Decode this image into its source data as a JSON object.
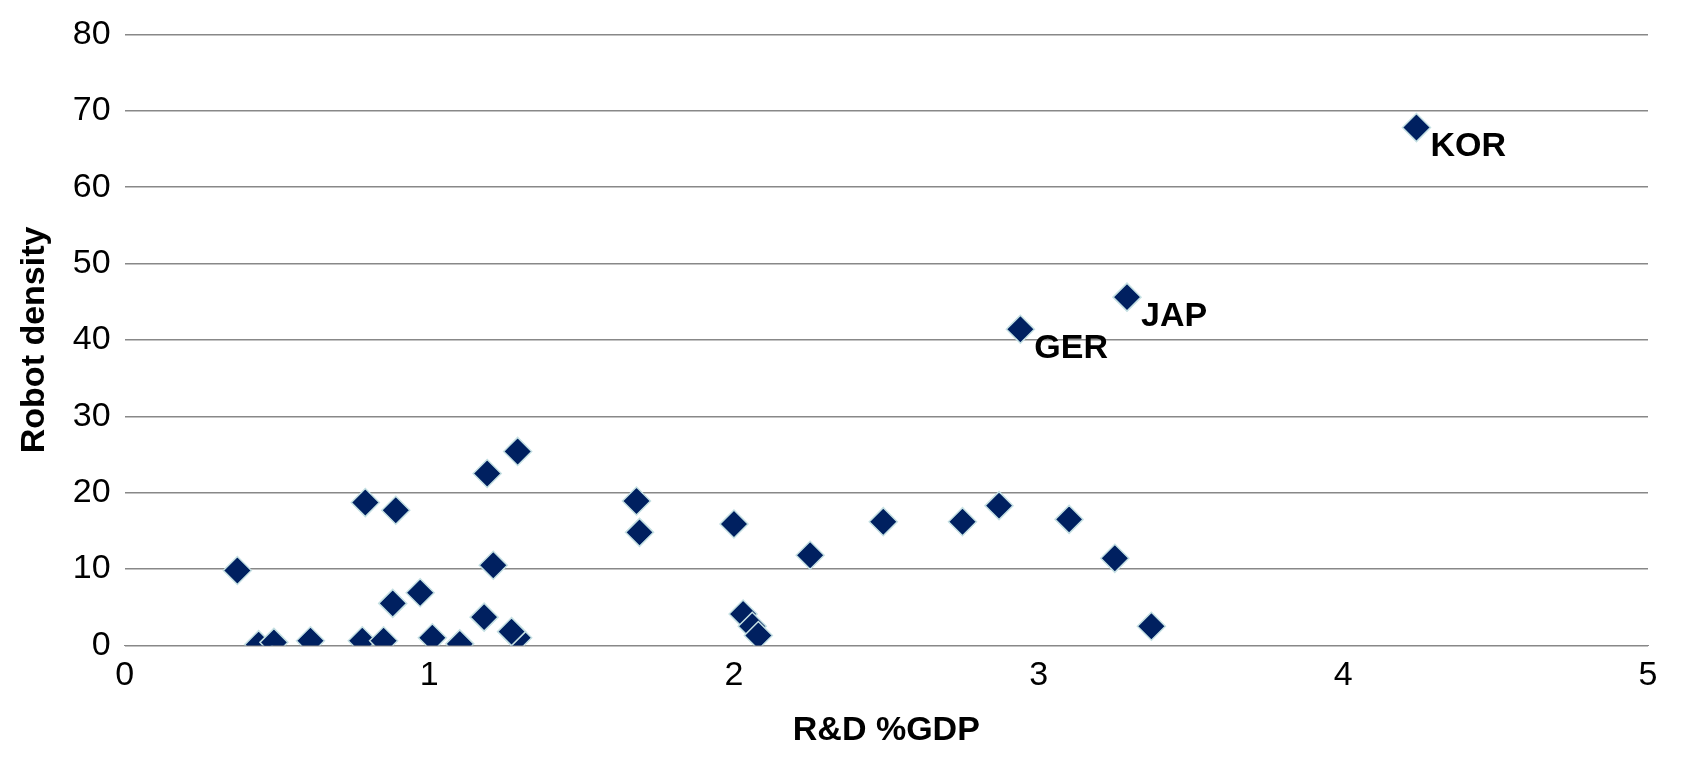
{
  "chart_data": {
    "type": "scatter",
    "xlabel": "R&D %GDP",
    "ylabel": "Robot density",
    "x": [
      0.37,
      0.44,
      0.49,
      0.61,
      0.78,
      0.79,
      0.85,
      0.88,
      0.89,
      0.97,
      1.01,
      1.1,
      1.18,
      1.19,
      1.21,
      1.29,
      1.27,
      1.29,
      1.68,
      1.69,
      2.0,
      2.03,
      2.06,
      2.08,
      2.25,
      2.49,
      2.75,
      2.87,
      2.94,
      3.1,
      3.25,
      3.29,
      3.37,
      4.24
    ],
    "series": [
      {
        "color": "#002060",
        "values": [
          9.8,
          0.1,
          0.4,
          0.6,
          0.6,
          18.7,
          0.6,
          5.5,
          17.7,
          6.9,
          1.0,
          0.2,
          3.7,
          22.5,
          10.5,
          1.0,
          1.8,
          25.4,
          18.9,
          14.8,
          15.9,
          4.1,
          2.5,
          1.3,
          11.8,
          16.2,
          16.2,
          18.3,
          41.4,
          16.5,
          11.4,
          45.6,
          2.5,
          67.8
        ]
      }
    ],
    "xlim": [
      0,
      5
    ],
    "xticks": [
      0,
      1,
      2,
      3,
      4,
      5
    ],
    "ylim": [
      0,
      80
    ],
    "yticks": [
      0,
      10,
      20,
      30,
      40,
      50,
      60,
      70,
      80
    ],
    "grid": "y",
    "legend": false,
    "marker": "diamond",
    "annotations": [
      {
        "text": "GER",
        "x": 2.94,
        "y": 41.4
      },
      {
        "text": "JAP",
        "x": 3.29,
        "y": 45.6
      },
      {
        "text": "KOR",
        "x": 4.24,
        "y": 67.8
      }
    ]
  }
}
